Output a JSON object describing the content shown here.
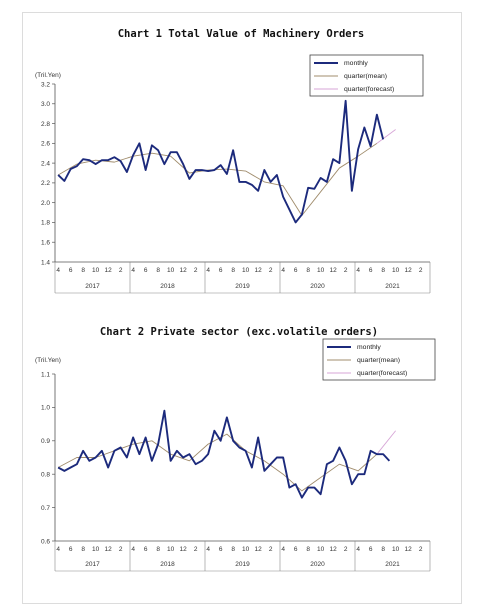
{
  "colors": {
    "monthly": "#1c2a7c",
    "quarter_mean": "#a08c6c",
    "quarter_forecast": "#d7a6d7"
  },
  "chart_data": [
    {
      "type": "line",
      "title": "Chart 1 Total Value of Machinery Orders",
      "unit": "(Tril.Yen)",
      "ylim": [
        1.4,
        3.2
      ],
      "yticks": [
        "1.4",
        "1.6",
        "1.8",
        "2.0",
        "2.2",
        "2.4",
        "2.6",
        "2.8",
        "3.0",
        "3.2"
      ],
      "month_ticks": [
        "4",
        "6",
        "8",
        "10",
        "12",
        "2",
        "4",
        "6",
        "8",
        "10",
        "12",
        "2",
        "4",
        "6",
        "8",
        "10",
        "12",
        "2",
        "4",
        "6",
        "8",
        "10",
        "12",
        "2",
        "4",
        "6",
        "8",
        "10",
        "12",
        "2"
      ],
      "years": [
        "2017",
        "2018",
        "2019",
        "2020",
        "2021"
      ],
      "legend": [
        "monthly",
        "quarter(mean)",
        "quarter(forecast)"
      ],
      "series": [
        {
          "name": "monthly",
          "values": [
            2.28,
            2.22,
            2.34,
            2.37,
            2.44,
            2.43,
            2.39,
            2.43,
            2.43,
            2.46,
            2.42,
            2.31,
            2.48,
            2.6,
            2.33,
            2.58,
            2.53,
            2.39,
            2.51,
            2.51,
            2.39,
            2.24,
            2.33,
            2.33,
            2.32,
            2.33,
            2.38,
            2.29,
            2.53,
            2.21,
            2.21,
            2.18,
            2.12,
            2.33,
            2.21,
            2.28,
            2.06,
            1.93,
            1.8,
            1.88,
            2.15,
            2.14,
            2.25,
            2.21,
            2.44,
            2.4,
            3.03,
            2.12,
            2.54,
            2.76,
            2.57,
            2.89,
            2.64
          ]
        },
        {
          "name": "quarter(mean)",
          "x": [
            1,
            4,
            7,
            10,
            13,
            16,
            19,
            22,
            25,
            28,
            31,
            34,
            37,
            40,
            43,
            46,
            49,
            52
          ],
          "values": [
            2.28,
            2.39,
            2.43,
            2.41,
            2.47,
            2.5,
            2.47,
            2.3,
            2.33,
            2.34,
            2.32,
            2.21,
            2.17,
            1.87,
            2.11,
            2.35,
            2.47,
            2.6
          ]
        },
        {
          "name": "quarter(forecast)",
          "x": [
            52,
            55
          ],
          "values": [
            2.6,
            2.74
          ]
        }
      ]
    },
    {
      "type": "line",
      "title": "Chart 2 Private sector (exc.volatile orders)",
      "unit": "(Tril.Yen)",
      "ylim": [
        0.6,
        1.1
      ],
      "yticks": [
        "0.6",
        "0.7",
        "0.8",
        "0.9",
        "1.0",
        "1.1"
      ],
      "month_ticks": [
        "4",
        "6",
        "8",
        "10",
        "12",
        "2",
        "4",
        "6",
        "8",
        "10",
        "12",
        "2",
        "4",
        "6",
        "8",
        "10",
        "12",
        "2",
        "4",
        "6",
        "8",
        "10",
        "12",
        "2",
        "4",
        "6",
        "8",
        "10",
        "12",
        "2"
      ],
      "years": [
        "2017",
        "2018",
        "2019",
        "2020",
        "2021"
      ],
      "legend": [
        "monthly",
        "quarter(mean)",
        "quarter(forecast)"
      ],
      "series": [
        {
          "name": "monthly",
          "values": [
            0.82,
            0.81,
            0.82,
            0.83,
            0.87,
            0.84,
            0.85,
            0.87,
            0.82,
            0.87,
            0.88,
            0.85,
            0.91,
            0.86,
            0.91,
            0.84,
            0.89,
            0.99,
            0.84,
            0.87,
            0.85,
            0.86,
            0.83,
            0.84,
            0.86,
            0.93,
            0.9,
            0.97,
            0.9,
            0.88,
            0.87,
            0.82,
            0.91,
            0.81,
            0.83,
            0.85,
            0.85,
            0.76,
            0.77,
            0.73,
            0.76,
            0.76,
            0.74,
            0.83,
            0.84,
            0.88,
            0.84,
            0.77,
            0.8,
            0.8,
            0.87,
            0.86,
            0.86,
            0.84
          ]
        },
        {
          "name": "quarter(mean)",
          "x": [
            1,
            4,
            7,
            10,
            13,
            16,
            19,
            22,
            25,
            28,
            31,
            34,
            37,
            40,
            43,
            46,
            49,
            52
          ],
          "values": [
            0.82,
            0.85,
            0.85,
            0.87,
            0.89,
            0.9,
            0.86,
            0.84,
            0.89,
            0.92,
            0.87,
            0.84,
            0.8,
            0.75,
            0.79,
            0.83,
            0.81,
            0.86
          ]
        },
        {
          "name": "quarter(forecast)",
          "x": [
            52,
            55
          ],
          "values": [
            0.86,
            0.93
          ]
        }
      ]
    }
  ]
}
